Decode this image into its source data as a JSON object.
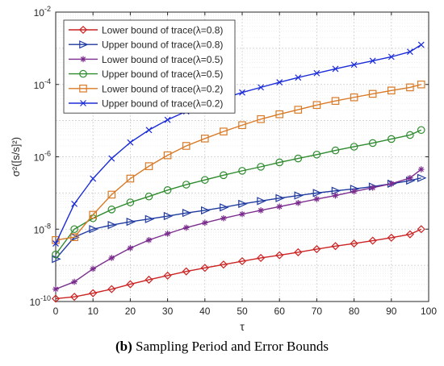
{
  "chart_data": {
    "type": "line",
    "x_scale": "linear",
    "y_scale": "log",
    "xlabel": "τ",
    "ylabel": "σ²([s/s]²)",
    "xlim": [
      0,
      100
    ],
    "ylim": [
      1e-10,
      0.01
    ],
    "x_ticks": [
      "0",
      "10",
      "20",
      "30",
      "40",
      "50",
      "60",
      "70",
      "80",
      "90",
      "100"
    ],
    "y_ticks": [
      {
        "value": 1e-10,
        "base": "10",
        "exp": "-10"
      },
      {
        "value": 1e-08,
        "base": "10",
        "exp": "-8"
      },
      {
        "value": 1e-06,
        "base": "10",
        "exp": "-6"
      },
      {
        "value": 0.0001,
        "base": "10",
        "exp": "-4"
      },
      {
        "value": 0.01,
        "base": "10",
        "exp": "-2"
      }
    ],
    "grid": true,
    "legend_position": "top-left",
    "x": [
      0,
      5,
      10,
      15,
      20,
      25,
      30,
      35,
      40,
      45,
      50,
      55,
      60,
      65,
      70,
      75,
      80,
      85,
      90,
      95,
      98
    ],
    "series": [
      {
        "name": "Lower bound of trace(λ=0.8)",
        "color": "#cc2222",
        "marker": "diamond",
        "values": [
          1.2e-10,
          1.35e-10,
          1.7e-10,
          2.2e-10,
          3e-10,
          4e-10,
          5.2e-10,
          6.8e-10,
          8.5e-10,
          1.05e-09,
          1.3e-09,
          1.6e-09,
          1.9e-09,
          2.3e-09,
          2.8e-09,
          3.4e-09,
          4e-09,
          4.8e-09,
          5.8e-09,
          7.2e-09,
          1e-08
        ]
      },
      {
        "name": "Upper bound of trace(λ=0.8)",
        "color": "#1f3aa0",
        "marker": "triangle-right",
        "values": [
          1.5e-09,
          6e-09,
          1e-08,
          1.3e-08,
          1.6e-08,
          1.9e-08,
          2.3e-08,
          2.8e-08,
          3.3e-08,
          4e-08,
          5e-08,
          6e-08,
          7.2e-08,
          8.5e-08,
          1e-07,
          1.15e-07,
          1.3e-07,
          1.5e-07,
          1.8e-07,
          2.2e-07,
          2.6e-07
        ]
      },
      {
        "name": "Lower bound of trace(λ=0.5)",
        "color": "#7b2d8e",
        "marker": "asterisk",
        "values": [
          2.2e-10,
          3.5e-10,
          8e-10,
          1.6e-09,
          3e-09,
          5e-09,
          7.5e-09,
          1.1e-08,
          1.5e-08,
          2e-08,
          2.6e-08,
          3.3e-08,
          4.2e-08,
          5.3e-08,
          6.8e-08,
          8.5e-08,
          1.1e-07,
          1.4e-07,
          1.8e-07,
          2.6e-07,
          4.5e-07
        ]
      },
      {
        "name": "Upper bound of trace(λ=0.5)",
        "color": "#2e8b2e",
        "marker": "circle",
        "values": [
          2e-09,
          1e-08,
          2e-08,
          3.5e-08,
          5.5e-08,
          8e-08,
          1.2e-07,
          1.7e-07,
          2.3e-07,
          3.1e-07,
          4.1e-07,
          5.3e-07,
          7e-07,
          9e-07,
          1.15e-06,
          1.5e-06,
          1.9e-06,
          2.4e-06,
          3.1e-06,
          4e-06,
          5.5e-06
        ]
      },
      {
        "name": "Lower bound of trace(λ=0.2)",
        "color": "#d97a26",
        "marker": "square",
        "values": [
          5e-09,
          6e-09,
          2.5e-08,
          9e-08,
          2.5e-07,
          5.5e-07,
          1.1e-06,
          2e-06,
          3.2e-06,
          5e-06,
          7.5e-06,
          1.1e-05,
          1.5e-05,
          2e-05,
          2.7e-05,
          3.5e-05,
          4.4e-05,
          5.5e-05,
          6.8e-05,
          8.3e-05,
          0.0001
        ]
      },
      {
        "name": "Upper bound of trace(λ=0.2)",
        "color": "#1a2bd9",
        "marker": "x",
        "values": [
          4e-09,
          5e-08,
          2.5e-07,
          9e-07,
          2.5e-06,
          5.5e-06,
          1.05e-05,
          1.8e-05,
          2.8e-05,
          4.1e-05,
          6e-05,
          8.3e-05,
          0.000115,
          0.000155,
          0.000205,
          0.00027,
          0.00035,
          0.00045,
          0.00058,
          0.0008,
          0.00125
        ]
      }
    ]
  },
  "caption": {
    "label": "(b)",
    "text": "Sampling Period and Error Bounds"
  }
}
